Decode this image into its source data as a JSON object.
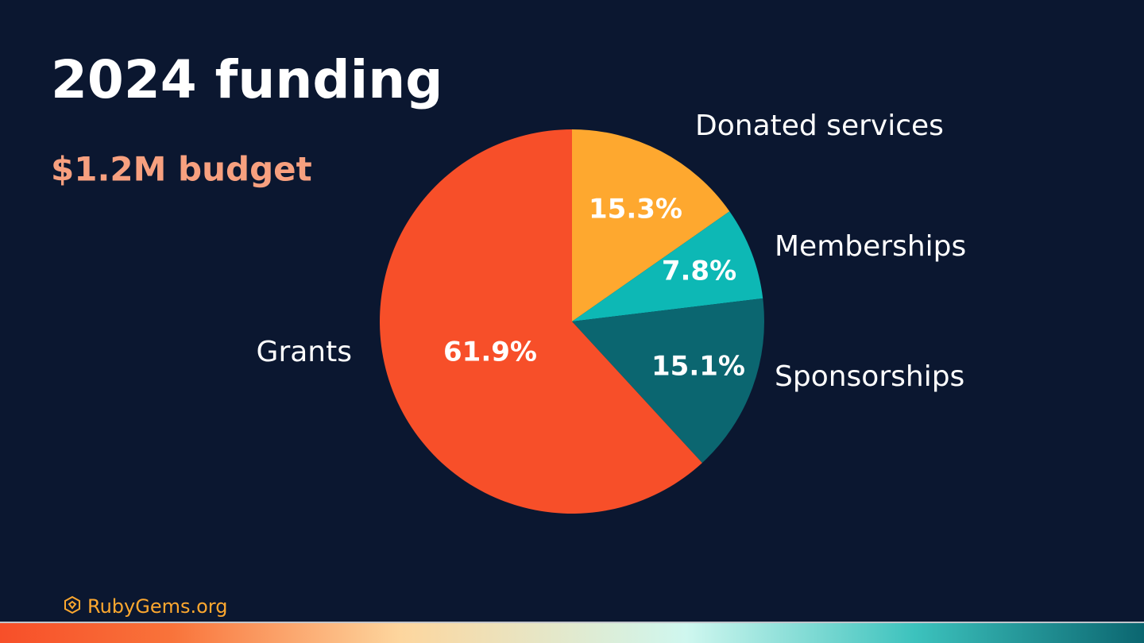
{
  "chart_data": {
    "type": "pie",
    "title": "2024 funding",
    "subtitle": "$1.2M budget",
    "categories": [
      "Donated services",
      "Memberships",
      "Sponsorships",
      "Grants"
    ],
    "values": [
      15.3,
      7.8,
      15.1,
      61.9
    ],
    "value_labels": [
      "15.3%",
      "7.8%",
      "15.1%",
      "61.9%"
    ],
    "colors": [
      "#fea82f",
      "#0db8b5",
      "#0b6670",
      "#f74f29"
    ]
  },
  "footer": {
    "text": "RubyGems.org"
  }
}
